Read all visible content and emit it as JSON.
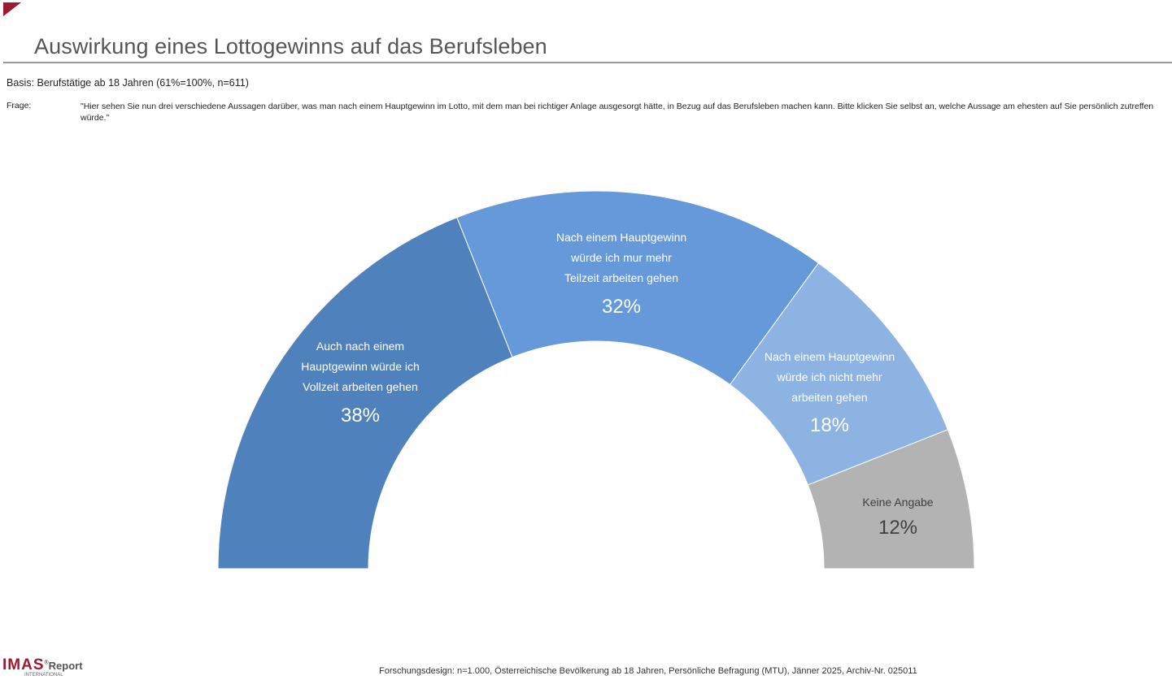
{
  "header": {
    "title": "Auswirkung eines Lottogewinns auf das Berufsleben",
    "basis": "Basis:  Berufstätige ab 18 Jahren (61%=100%, n=611)",
    "frage_label": "Frage:",
    "frage": "\"Hier sehen Sie nun drei verschiedene Aussagen darüber, was man nach einem Hauptgewinn im Lotto, mit dem man bei richtiger Anlage ausgesorgt hätte, in Bezug auf das Berufsleben machen kann. Bitte klicken Sie selbst an, welche Aussage am ehesten auf Sie persönlich zutreffen würde.\""
  },
  "chart_data": {
    "type": "pie",
    "variant": "semi-donut",
    "slices": [
      {
        "lines": [
          "Auch nach einem",
          "Hauptgewinn würde ich",
          "Vollzeit arbeiten gehen"
        ],
        "value": 38,
        "label": "38%",
        "color": "#4f81bd",
        "text_color": "#ffffff"
      },
      {
        "lines": [
          "Nach einem Hauptgewinn",
          "würde ich mur mehr",
          "Teilzeit arbeiten gehen"
        ],
        "value": 32,
        "label": "32%",
        "color": "#6699da",
        "text_color": "#ffffff"
      },
      {
        "lines": [
          "Nach einem Hauptgewinn",
          "würde ich nicht mehr",
          "arbeiten gehen"
        ],
        "value": 18,
        "label": "18%",
        "color": "#8db3e2",
        "text_color": "#ffffff"
      },
      {
        "lines": [
          "Keine Angabe"
        ],
        "value": 12,
        "label": "12%",
        "color": "#b3b3b3",
        "text_color": "#404040"
      }
    ]
  },
  "footer": {
    "logo": "IMAS Report",
    "logo_sub": "INTERNATIONAL",
    "text": "Forschungsdesign: n=1.000, Österreichische Bevölkerung ab 18 Jahren, Persönliche Befragung (MTU), Jänner 2025, Archiv-Nr. 025011"
  }
}
